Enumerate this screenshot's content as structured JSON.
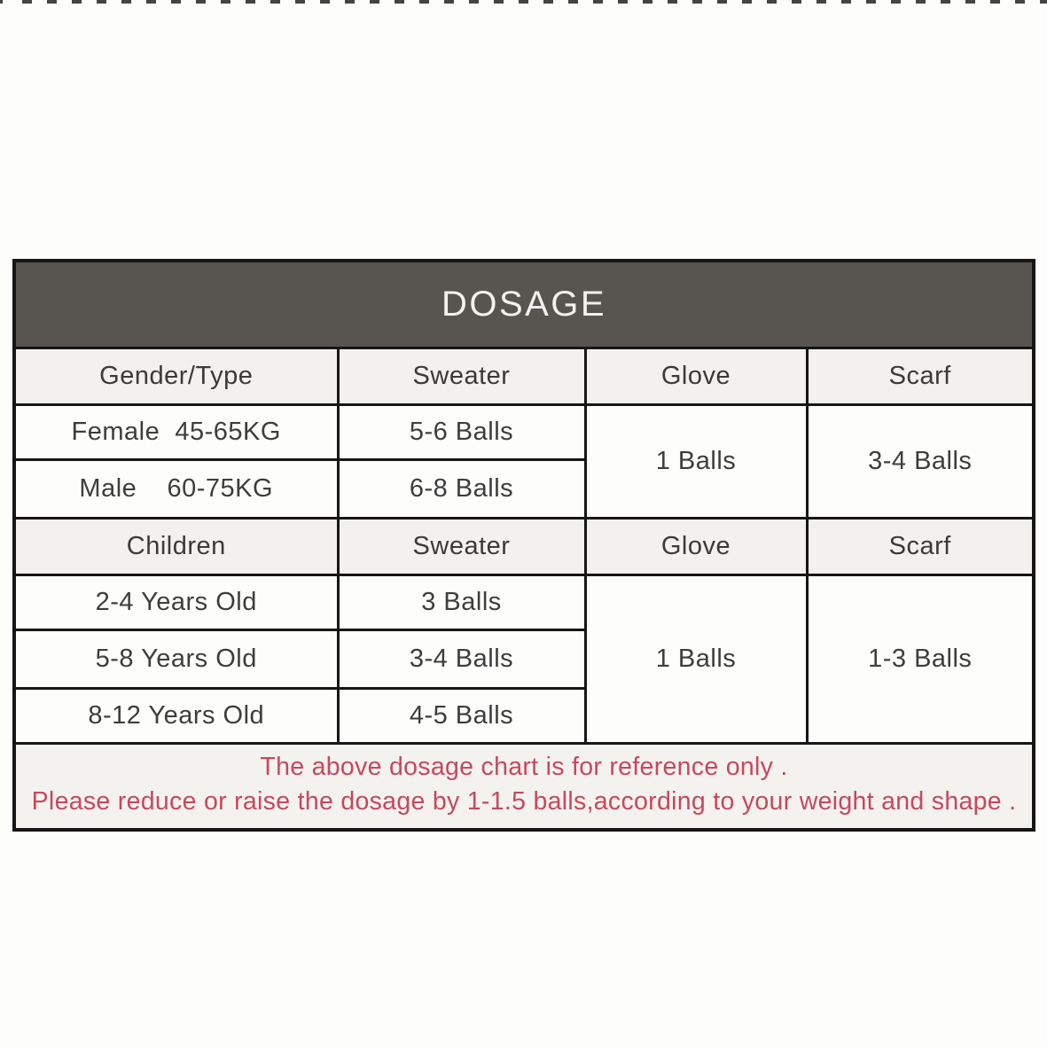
{
  "colors": {
    "title_bar_bg": "#585551",
    "title_text": "#f2f1ef",
    "subheader_bg": "#f3f1ee",
    "cell_bg": "#fdfdfc",
    "footer_bg": "#f4f2ef",
    "footer_text_red": "#c7485c",
    "border": "#161616",
    "page_bg": "#fdfdfa"
  },
  "table": {
    "title": "DOSAGE",
    "section1": {
      "headers": [
        "Gender/Type",
        "Sweater",
        "Glove",
        "Scarf"
      ],
      "rows": [
        {
          "label": "Female  45-65KG",
          "sweater": "5-6 Balls"
        },
        {
          "label": "Male    60-75KG",
          "sweater": "6-8 Balls"
        }
      ],
      "glove": "1 Balls",
      "scarf": "3-4 Balls"
    },
    "section2": {
      "headers": [
        "Children",
        "Sweater",
        "Glove",
        "Scarf"
      ],
      "rows": [
        {
          "label": "2-4 Years Old",
          "sweater": "3 Balls"
        },
        {
          "label": "5-8 Years Old",
          "sweater": "3-4 Balls"
        },
        {
          "label": "8-12 Years Old",
          "sweater": "4-5 Balls"
        }
      ],
      "glove": "1 Balls",
      "scarf": "1-3 Balls"
    },
    "footer": {
      "line1": "The above dosage chart is for reference only .",
      "line2": "Please reduce or raise the dosage by 1-1.5 balls,according to your weight and shape ."
    }
  }
}
